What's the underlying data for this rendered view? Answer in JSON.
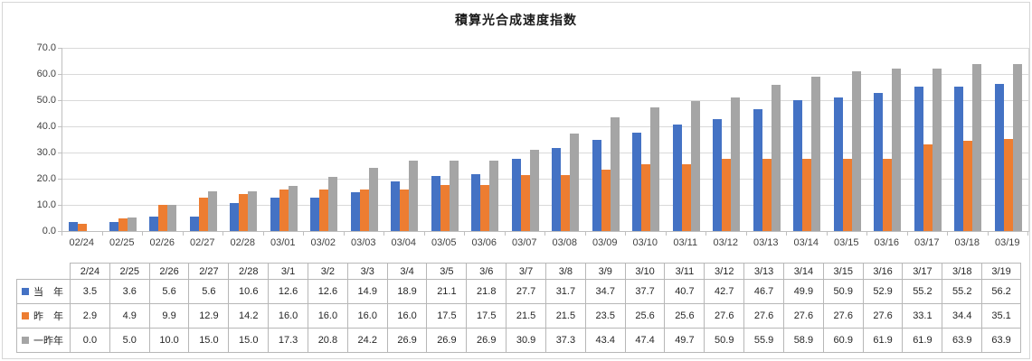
{
  "chart_data": {
    "type": "bar",
    "title": "積算光合成速度指数",
    "xlabel": "",
    "ylabel": "",
    "ylim": [
      0,
      70
    ],
    "grid": true,
    "legend_position": "data-table-left",
    "y_tick_labels": [
      "70.0",
      "60.0",
      "50.0",
      "40.0",
      "30.0",
      "20.0",
      "10.0",
      "0.0"
    ],
    "x_tick_labels": [
      "02/24",
      "02/25",
      "02/26",
      "02/27",
      "02/28",
      "03/01",
      "03/02",
      "03/03",
      "03/04",
      "03/05",
      "03/06",
      "03/07",
      "03/08",
      "03/09",
      "03/10",
      "03/11",
      "03/12",
      "03/13",
      "03/14",
      "03/15",
      "03/16",
      "03/17",
      "03/18",
      "03/19"
    ],
    "table_date_headers": [
      "2/24",
      "2/25",
      "2/26",
      "2/27",
      "2/28",
      "3/1",
      "3/2",
      "3/3",
      "3/4",
      "3/5",
      "3/6",
      "3/7",
      "3/8",
      "3/9",
      "3/10",
      "3/11",
      "3/12",
      "3/13",
      "3/14",
      "3/15",
      "3/16",
      "3/17",
      "3/18",
      "3/19"
    ],
    "series": [
      {
        "name": "当　年",
        "color": "#4472C4",
        "values": [
          3.5,
          3.6,
          5.6,
          5.6,
          10.6,
          12.6,
          12.6,
          14.9,
          18.9,
          21.1,
          21.8,
          27.7,
          31.7,
          34.7,
          37.7,
          40.7,
          42.7,
          46.7,
          49.9,
          50.9,
          52.9,
          55.2,
          55.2,
          56.2
        ]
      },
      {
        "name": "昨　年",
        "color": "#ED7D31",
        "values": [
          2.9,
          4.9,
          9.9,
          12.9,
          14.2,
          16.0,
          16.0,
          16.0,
          16.0,
          17.5,
          17.5,
          21.5,
          21.5,
          23.5,
          25.6,
          25.6,
          27.6,
          27.6,
          27.6,
          27.6,
          27.6,
          33.1,
          34.4,
          35.1
        ]
      },
      {
        "name": "一昨年",
        "color": "#A5A5A5",
        "values": [
          0.0,
          5.0,
          10.0,
          15.0,
          15.0,
          17.3,
          20.8,
          24.2,
          26.9,
          26.9,
          26.9,
          30.9,
          37.3,
          43.4,
          47.4,
          49.7,
          50.9,
          55.9,
          58.9,
          60.9,
          61.9,
          61.9,
          63.9,
          63.9
        ]
      }
    ],
    "colors": {
      "gridline": "#D9D9D9",
      "axis_line": "#BFBFBF",
      "table_border": "#B7B7B7"
    }
  }
}
